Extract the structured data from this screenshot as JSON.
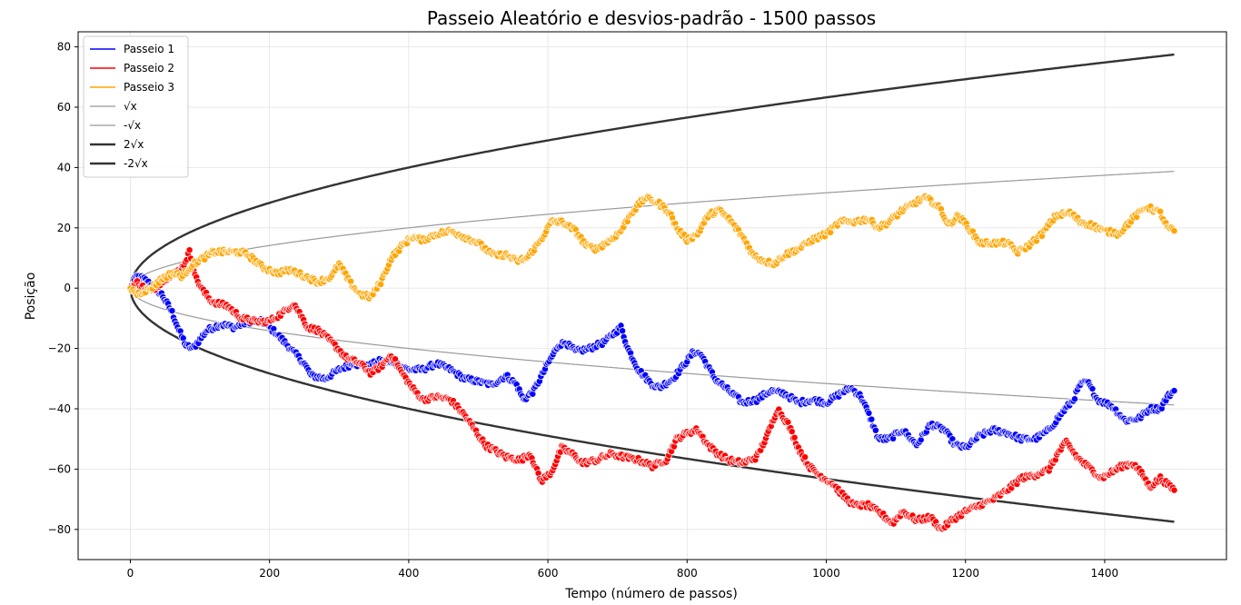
{
  "chart_data": {
    "type": "line",
    "title": "Passeio Aleatório e  desvios-padrão - 1500 passos",
    "xlabel": "Tempo (número de passos)",
    "ylabel": "Posição",
    "xlim": [
      -75,
      1575
    ],
    "ylim": [
      -90,
      85
    ],
    "xticks": [
      0,
      200,
      400,
      600,
      800,
      1000,
      1200,
      1400
    ],
    "yticks": [
      -80,
      -60,
      -40,
      -20,
      0,
      20,
      40,
      60,
      80
    ],
    "xtick_labels": [
      "0",
      "200",
      "400",
      "600",
      "800",
      "1000",
      "1200",
      "1400"
    ],
    "ytick_labels": [
      "−80",
      "−60",
      "−40",
      "−20",
      "0",
      "20",
      "40",
      "60",
      "80"
    ],
    "grid": true,
    "legend_position": "top-left",
    "series": [
      {
        "name": "Passeio 1",
        "color": "#0000ff",
        "markers": true,
        "points": [
          [
            0,
            0
          ],
          [
            10,
            4
          ],
          [
            20,
            3
          ],
          [
            30,
            1
          ],
          [
            45,
            -2
          ],
          [
            60,
            -8
          ],
          [
            70,
            -14
          ],
          [
            80,
            -19
          ],
          [
            90,
            -20
          ],
          [
            100,
            -17
          ],
          [
            110,
            -14
          ],
          [
            120,
            -13
          ],
          [
            130,
            -12
          ],
          [
            150,
            -13
          ],
          [
            170,
            -11
          ],
          [
            190,
            -11
          ],
          [
            210,
            -15
          ],
          [
            230,
            -20
          ],
          [
            250,
            -25
          ],
          [
            260,
            -29
          ],
          [
            280,
            -30
          ],
          [
            300,
            -27
          ],
          [
            320,
            -25
          ],
          [
            340,
            -26
          ],
          [
            360,
            -24
          ],
          [
            380,
            -25
          ],
          [
            400,
            -27
          ],
          [
            420,
            -27
          ],
          [
            440,
            -25
          ],
          [
            460,
            -27
          ],
          [
            480,
            -30
          ],
          [
            500,
            -31
          ],
          [
            520,
            -32
          ],
          [
            540,
            -29
          ],
          [
            555,
            -32
          ],
          [
            565,
            -37
          ],
          [
            580,
            -34
          ],
          [
            600,
            -25
          ],
          [
            615,
            -19
          ],
          [
            625,
            -18
          ],
          [
            640,
            -21
          ],
          [
            660,
            -20
          ],
          [
            680,
            -18
          ],
          [
            690,
            -16
          ],
          [
            705,
            -13
          ],
          [
            715,
            -20
          ],
          [
            730,
            -27
          ],
          [
            750,
            -32
          ],
          [
            760,
            -33
          ],
          [
            780,
            -30
          ],
          [
            800,
            -24
          ],
          [
            810,
            -21
          ],
          [
            820,
            -22
          ],
          [
            840,
            -30
          ],
          [
            860,
            -34
          ],
          [
            880,
            -38
          ],
          [
            900,
            -37
          ],
          [
            920,
            -34
          ],
          [
            940,
            -35
          ],
          [
            960,
            -38
          ],
          [
            980,
            -37
          ],
          [
            1000,
            -38
          ],
          [
            1020,
            -35
          ],
          [
            1035,
            -33
          ],
          [
            1050,
            -36
          ],
          [
            1065,
            -44
          ],
          [
            1075,
            -50
          ],
          [
            1090,
            -50
          ],
          [
            1110,
            -47
          ],
          [
            1130,
            -52
          ],
          [
            1150,
            -45
          ],
          [
            1170,
            -47
          ],
          [
            1185,
            -52
          ],
          [
            1200,
            -53
          ],
          [
            1220,
            -49
          ],
          [
            1240,
            -47
          ],
          [
            1260,
            -48
          ],
          [
            1280,
            -50
          ],
          [
            1300,
            -50
          ],
          [
            1320,
            -47
          ],
          [
            1340,
            -41
          ],
          [
            1355,
            -37
          ],
          [
            1365,
            -32
          ],
          [
            1375,
            -31
          ],
          [
            1390,
            -37
          ],
          [
            1410,
            -39
          ],
          [
            1430,
            -44
          ],
          [
            1450,
            -43
          ],
          [
            1465,
            -40
          ],
          [
            1480,
            -40
          ],
          [
            1490,
            -36
          ],
          [
            1500,
            -34
          ]
        ]
      },
      {
        "name": "Passeio 2",
        "color": "#ff0000",
        "markers": true,
        "points": [
          [
            0,
            0
          ],
          [
            10,
            2
          ],
          [
            20,
            0
          ],
          [
            30,
            -1
          ],
          [
            45,
            2
          ],
          [
            55,
            4
          ],
          [
            65,
            5
          ],
          [
            75,
            7
          ],
          [
            85,
            12
          ],
          [
            95,
            3
          ],
          [
            105,
            -1
          ],
          [
            115,
            -4
          ],
          [
            125,
            -5
          ],
          [
            140,
            -6
          ],
          [
            160,
            -10
          ],
          [
            180,
            -11
          ],
          [
            200,
            -11
          ],
          [
            220,
            -8
          ],
          [
            235,
            -5
          ],
          [
            245,
            -9
          ],
          [
            255,
            -13
          ],
          [
            270,
            -14
          ],
          [
            290,
            -18
          ],
          [
            310,
            -23
          ],
          [
            330,
            -25
          ],
          [
            345,
            -28
          ],
          [
            360,
            -26
          ],
          [
            375,
            -22
          ],
          [
            390,
            -28
          ],
          [
            405,
            -33
          ],
          [
            420,
            -37
          ],
          [
            440,
            -36
          ],
          [
            460,
            -37
          ],
          [
            480,
            -42
          ],
          [
            495,
            -47
          ],
          [
            510,
            -52
          ],
          [
            525,
            -54
          ],
          [
            540,
            -56
          ],
          [
            560,
            -57
          ],
          [
            575,
            -55
          ],
          [
            590,
            -64
          ],
          [
            605,
            -61
          ],
          [
            620,
            -53
          ],
          [
            635,
            -55
          ],
          [
            650,
            -58
          ],
          [
            670,
            -57
          ],
          [
            690,
            -55
          ],
          [
            710,
            -56
          ],
          [
            730,
            -57
          ],
          [
            750,
            -59
          ],
          [
            770,
            -57
          ],
          [
            785,
            -50
          ],
          [
            800,
            -48
          ],
          [
            815,
            -47
          ],
          [
            830,
            -52
          ],
          [
            845,
            -55
          ],
          [
            860,
            -57
          ],
          [
            880,
            -58
          ],
          [
            900,
            -56
          ],
          [
            915,
            -49
          ],
          [
            930,
            -40
          ],
          [
            945,
            -45
          ],
          [
            960,
            -53
          ],
          [
            975,
            -59
          ],
          [
            990,
            -62
          ],
          [
            1010,
            -65
          ],
          [
            1025,
            -69
          ],
          [
            1040,
            -72
          ],
          [
            1060,
            -72
          ],
          [
            1080,
            -75
          ],
          [
            1095,
            -78
          ],
          [
            1110,
            -74
          ],
          [
            1130,
            -77
          ],
          [
            1150,
            -76
          ],
          [
            1165,
            -80
          ],
          [
            1180,
            -77
          ],
          [
            1200,
            -74
          ],
          [
            1220,
            -72
          ],
          [
            1240,
            -70
          ],
          [
            1260,
            -67
          ],
          [
            1280,
            -63
          ],
          [
            1300,
            -62
          ],
          [
            1320,
            -60
          ],
          [
            1335,
            -54
          ],
          [
            1345,
            -51
          ],
          [
            1360,
            -56
          ],
          [
            1380,
            -60
          ],
          [
            1395,
            -63
          ],
          [
            1410,
            -61
          ],
          [
            1425,
            -59
          ],
          [
            1440,
            -58
          ],
          [
            1455,
            -62
          ],
          [
            1465,
            -66
          ],
          [
            1480,
            -63
          ],
          [
            1490,
            -65
          ],
          [
            1500,
            -67
          ]
        ]
      },
      {
        "name": "Passeio 3",
        "color": "#ffa500",
        "markers": true,
        "points": [
          [
            0,
            0
          ],
          [
            10,
            -2
          ],
          [
            20,
            -1
          ],
          [
            30,
            0
          ],
          [
            45,
            3
          ],
          [
            60,
            5
          ],
          [
            75,
            4
          ],
          [
            90,
            8
          ],
          [
            105,
            10
          ],
          [
            120,
            12
          ],
          [
            140,
            12
          ],
          [
            160,
            12
          ],
          [
            175,
            10
          ],
          [
            190,
            7
          ],
          [
            210,
            5
          ],
          [
            230,
            6
          ],
          [
            250,
            4
          ],
          [
            270,
            2
          ],
          [
            290,
            4
          ],
          [
            300,
            8
          ],
          [
            315,
            2
          ],
          [
            330,
            -2
          ],
          [
            345,
            -3
          ],
          [
            360,
            2
          ],
          [
            375,
            10
          ],
          [
            390,
            14
          ],
          [
            405,
            17
          ],
          [
            420,
            16
          ],
          [
            440,
            18
          ],
          [
            460,
            19
          ],
          [
            480,
            17
          ],
          [
            500,
            15
          ],
          [
            520,
            11
          ],
          [
            540,
            11
          ],
          [
            555,
            9
          ],
          [
            570,
            10
          ],
          [
            590,
            16
          ],
          [
            605,
            22
          ],
          [
            620,
            22
          ],
          [
            640,
            19
          ],
          [
            655,
            14
          ],
          [
            670,
            13
          ],
          [
            690,
            16
          ],
          [
            705,
            19
          ],
          [
            720,
            25
          ],
          [
            740,
            30
          ],
          [
            760,
            28
          ],
          [
            775,
            25
          ],
          [
            785,
            20
          ],
          [
            800,
            16
          ],
          [
            815,
            18
          ],
          [
            830,
            24
          ],
          [
            845,
            26
          ],
          [
            860,
            23
          ],
          [
            880,
            17
          ],
          [
            895,
            11
          ],
          [
            910,
            9
          ],
          [
            925,
            8
          ],
          [
            940,
            11
          ],
          [
            960,
            13
          ],
          [
            980,
            16
          ],
          [
            1000,
            18
          ],
          [
            1020,
            22
          ],
          [
            1040,
            22
          ],
          [
            1060,
            23
          ],
          [
            1075,
            20
          ],
          [
            1090,
            22
          ],
          [
            1110,
            26
          ],
          [
            1125,
            28
          ],
          [
            1140,
            30
          ],
          [
            1150,
            29
          ],
          [
            1165,
            26
          ],
          [
            1175,
            21
          ],
          [
            1190,
            24
          ],
          [
            1205,
            20
          ],
          [
            1220,
            15
          ],
          [
            1240,
            15
          ],
          [
            1260,
            15
          ],
          [
            1275,
            12
          ],
          [
            1290,
            14
          ],
          [
            1310,
            18
          ],
          [
            1330,
            24
          ],
          [
            1350,
            25
          ],
          [
            1365,
            22
          ],
          [
            1380,
            21
          ],
          [
            1400,
            19
          ],
          [
            1420,
            18
          ],
          [
            1440,
            23
          ],
          [
            1460,
            27
          ],
          [
            1480,
            25
          ],
          [
            1490,
            20
          ],
          [
            1500,
            19
          ]
        ]
      },
      {
        "name": "√x",
        "color": "#999999",
        "function": "sqrt",
        "scale": 1,
        "width": 1.2,
        "xrange": [
          0,
          1500
        ]
      },
      {
        "name": "-√x",
        "color": "#999999",
        "function": "sqrt",
        "scale": -1,
        "width": 1.2,
        "xrange": [
          0,
          1500
        ]
      },
      {
        "name": "2√x",
        "color": "#333333",
        "function": "sqrt",
        "scale": 2,
        "width": 2.4,
        "xrange": [
          0,
          1500
        ]
      },
      {
        "name": "-2√x",
        "color": "#333333",
        "function": "sqrt",
        "scale": -2,
        "width": 2.4,
        "xrange": [
          0,
          1500
        ]
      }
    ]
  }
}
